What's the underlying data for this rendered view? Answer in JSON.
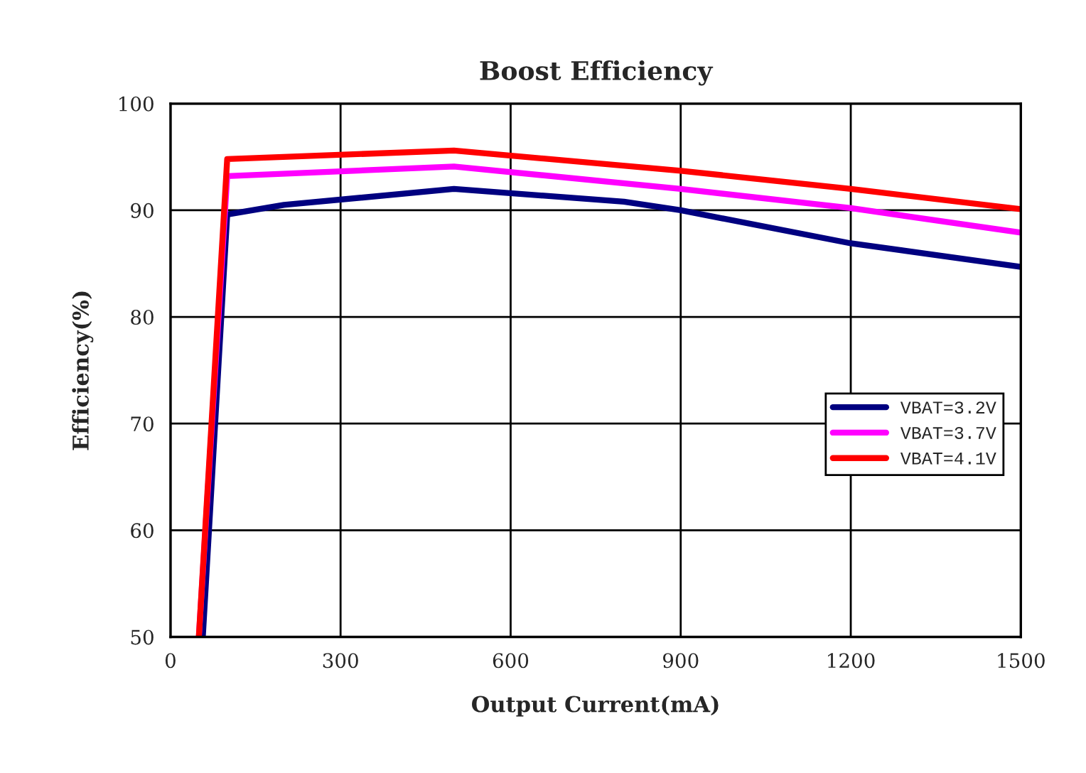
{
  "chart_data": {
    "type": "line",
    "title": "Boost Efficiency",
    "xlabel": "Output Current(mA)",
    "ylabel": "Efficiency(%)",
    "series": [
      {
        "name": "VBAT=3.2V",
        "color": "#000080",
        "x": [
          57,
          100,
          200,
          500,
          800,
          900,
          1200,
          1500
        ],
        "values": [
          50,
          89.6,
          90.5,
          92.0,
          90.8,
          90.0,
          86.9,
          84.7
        ]
      },
      {
        "name": "VBAT=3.7V",
        "color": "#ff00ff",
        "x": [
          50,
          100,
          500,
          900,
          1200,
          1500
        ],
        "values": [
          50,
          93.2,
          94.1,
          92.0,
          90.2,
          87.9
        ]
      },
      {
        "name": "VBAT=4.1V",
        "color": "#ff0000",
        "x": [
          50,
          100,
          500,
          900,
          1200,
          1500
        ],
        "values": [
          50,
          94.8,
          95.6,
          93.7,
          92.0,
          90.1
        ]
      }
    ],
    "xlim": [
      0,
      1500
    ],
    "xticks": [
      0,
      300,
      600,
      900,
      1200,
      1500
    ],
    "ylim": [
      50,
      100
    ],
    "yticks": [
      50,
      60,
      70,
      80,
      90,
      100
    ],
    "grid": true,
    "legend": "right",
    "marker": "none",
    "line_style": "solid"
  }
}
